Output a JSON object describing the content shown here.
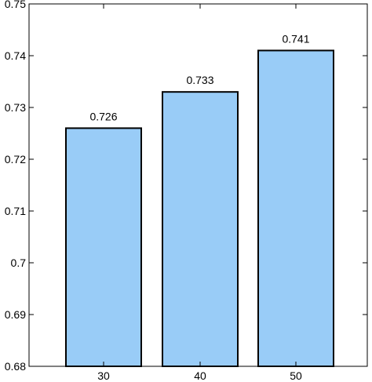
{
  "chart_data": {
    "type": "bar",
    "categories": [
      "30",
      "40",
      "50"
    ],
    "values": [
      0.726,
      0.733,
      0.741
    ],
    "data_labels": [
      "0.726",
      "0.733",
      "0.741"
    ],
    "title": "",
    "xlabel": "",
    "ylabel": "",
    "ylim": [
      0.68,
      0.75
    ],
    "yticks": [
      0.68,
      0.69,
      0.7,
      0.71,
      0.72,
      0.73,
      0.74,
      0.75
    ],
    "ytick_labels": [
      "0.68",
      "0.69",
      "0.7",
      "0.71",
      "0.72",
      "0.73",
      "0.74",
      "0.75"
    ],
    "grid": false,
    "legend": "none",
    "colors": {
      "bar_fill": "#99ccf7",
      "bar_edge": "#000000",
      "axis": "#000000"
    }
  }
}
